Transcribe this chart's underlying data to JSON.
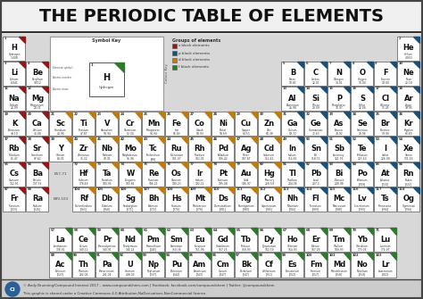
{
  "title": "THE PERIODIC TABLE OF ELEMENTS",
  "bg_color": "#d8d8d8",
  "title_bg": "#f2f2f2",
  "cell_bg": "#ffffff",
  "border_color": "#555555",
  "s_block_color": "#8B1A1A",
  "p_block_color": "#1a4f7a",
  "d_block_color": "#c07a10",
  "f_block_color": "#2d7a2d",
  "label_57_71": "E57-71",
  "label_89_103": "E89-103",
  "elements": [
    {
      "sym": "H",
      "name": "Hydrogen",
      "num": 1,
      "mass": "1.008",
      "row": 1,
      "col": 1,
      "block": "s"
    },
    {
      "sym": "He",
      "name": "Helium",
      "num": 2,
      "mass": "4.003",
      "row": 1,
      "col": 18,
      "block": "p"
    },
    {
      "sym": "Li",
      "name": "Lithium",
      "num": 3,
      "mass": "6.941",
      "row": 2,
      "col": 1,
      "block": "s"
    },
    {
      "sym": "Be",
      "name": "Beryllium",
      "num": 4,
      "mass": "9.012",
      "row": 2,
      "col": 2,
      "block": "s"
    },
    {
      "sym": "B",
      "name": "Boron",
      "num": 5,
      "mass": "10.81",
      "row": 2,
      "col": 13,
      "block": "p"
    },
    {
      "sym": "C",
      "name": "Carbon",
      "num": 6,
      "mass": "12.01",
      "row": 2,
      "col": 14,
      "block": "p"
    },
    {
      "sym": "N",
      "name": "Nitrogen",
      "num": 7,
      "mass": "14.01",
      "row": 2,
      "col": 15,
      "block": "p"
    },
    {
      "sym": "O",
      "name": "Oxygen",
      "num": 8,
      "mass": "16.00",
      "row": 2,
      "col": 16,
      "block": "p"
    },
    {
      "sym": "F",
      "name": "Fluorine",
      "num": 9,
      "mass": "19.00",
      "row": 2,
      "col": 17,
      "block": "p"
    },
    {
      "sym": "Ne",
      "name": "Neon",
      "num": 10,
      "mass": "20.18",
      "row": 2,
      "col": 18,
      "block": "p"
    },
    {
      "sym": "Na",
      "name": "Sodium",
      "num": 11,
      "mass": "22.99",
      "row": 3,
      "col": 1,
      "block": "s"
    },
    {
      "sym": "Mg",
      "name": "Magnesium",
      "num": 12,
      "mass": "24.31",
      "row": 3,
      "col": 2,
      "block": "s"
    },
    {
      "sym": "Al",
      "name": "Aluminium",
      "num": 13,
      "mass": "26.98",
      "row": 3,
      "col": 13,
      "block": "p"
    },
    {
      "sym": "Si",
      "name": "Silicon",
      "num": 14,
      "mass": "28.09",
      "row": 3,
      "col": 14,
      "block": "p"
    },
    {
      "sym": "P",
      "name": "Phosphorus",
      "num": 15,
      "mass": "30.97",
      "row": 3,
      "col": 15,
      "block": "p"
    },
    {
      "sym": "S",
      "name": "Sulfur",
      "num": 16,
      "mass": "32.06",
      "row": 3,
      "col": 16,
      "block": "p"
    },
    {
      "sym": "Cl",
      "name": "Chlorine",
      "num": 17,
      "mass": "35.45",
      "row": 3,
      "col": 17,
      "block": "p"
    },
    {
      "sym": "Ar",
      "name": "Argon",
      "num": 18,
      "mass": "39.95",
      "row": 3,
      "col": 18,
      "block": "p"
    },
    {
      "sym": "K",
      "name": "Potassium",
      "num": 19,
      "mass": "39.10",
      "row": 4,
      "col": 1,
      "block": "s"
    },
    {
      "sym": "Ca",
      "name": "Calcium",
      "num": 20,
      "mass": "40.08",
      "row": 4,
      "col": 2,
      "block": "s"
    },
    {
      "sym": "Sc",
      "name": "Scandium",
      "num": 21,
      "mass": "44.96",
      "row": 4,
      "col": 3,
      "block": "d"
    },
    {
      "sym": "Ti",
      "name": "Titanium",
      "num": 22,
      "mass": "47.87",
      "row": 4,
      "col": 4,
      "block": "d"
    },
    {
      "sym": "V",
      "name": "Vanadium",
      "num": 23,
      "mass": "50.94",
      "row": 4,
      "col": 5,
      "block": "d"
    },
    {
      "sym": "Cr",
      "name": "Chromium",
      "num": 24,
      "mass": "52.00",
      "row": 4,
      "col": 6,
      "block": "d"
    },
    {
      "sym": "Mn",
      "name": "Manganese",
      "num": 25,
      "mass": "54.94",
      "row": 4,
      "col": 7,
      "block": "d"
    },
    {
      "sym": "Fe",
      "name": "Iron",
      "num": 26,
      "mass": "55.85",
      "row": 4,
      "col": 8,
      "block": "d"
    },
    {
      "sym": "Co",
      "name": "Cobalt",
      "num": 27,
      "mass": "58.93",
      "row": 4,
      "col": 9,
      "block": "d"
    },
    {
      "sym": "Ni",
      "name": "Nickel",
      "num": 28,
      "mass": "58.69",
      "row": 4,
      "col": 10,
      "block": "d"
    },
    {
      "sym": "Cu",
      "name": "Copper",
      "num": 29,
      "mass": "63.55",
      "row": 4,
      "col": 11,
      "block": "d"
    },
    {
      "sym": "Zn",
      "name": "Zinc",
      "num": 30,
      "mass": "65.38",
      "row": 4,
      "col": 12,
      "block": "d"
    },
    {
      "sym": "Ga",
      "name": "Gallium",
      "num": 31,
      "mass": "69.72",
      "row": 4,
      "col": 13,
      "block": "p"
    },
    {
      "sym": "Ge",
      "name": "Germanium",
      "num": 32,
      "mass": "72.63",
      "row": 4,
      "col": 14,
      "block": "p"
    },
    {
      "sym": "As",
      "name": "Arsenic",
      "num": 33,
      "mass": "74.92",
      "row": 4,
      "col": 15,
      "block": "p"
    },
    {
      "sym": "Se",
      "name": "Selenium",
      "num": 34,
      "mass": "78.96",
      "row": 4,
      "col": 16,
      "block": "p"
    },
    {
      "sym": "Br",
      "name": "Bromine",
      "num": 35,
      "mass": "79.90",
      "row": 4,
      "col": 17,
      "block": "p"
    },
    {
      "sym": "Kr",
      "name": "Krypton",
      "num": 36,
      "mass": "83.80",
      "row": 4,
      "col": 18,
      "block": "p"
    },
    {
      "sym": "Rb",
      "name": "Rubidium",
      "num": 37,
      "mass": "85.47",
      "row": 5,
      "col": 1,
      "block": "s"
    },
    {
      "sym": "Sr",
      "name": "Strontium",
      "num": 38,
      "mass": "87.62",
      "row": 5,
      "col": 2,
      "block": "s"
    },
    {
      "sym": "Y",
      "name": "Yttrium",
      "num": 39,
      "mass": "88.91",
      "row": 5,
      "col": 3,
      "block": "d"
    },
    {
      "sym": "Zr",
      "name": "Zirconium",
      "num": 40,
      "mass": "91.22",
      "row": 5,
      "col": 4,
      "block": "d"
    },
    {
      "sym": "Nb",
      "name": "Niobium",
      "num": 41,
      "mass": "92.91",
      "row": 5,
      "col": 5,
      "block": "d"
    },
    {
      "sym": "Mo",
      "name": "Molybdenum",
      "num": 42,
      "mass": "95.96",
      "row": 5,
      "col": 6,
      "block": "d"
    },
    {
      "sym": "Tc",
      "name": "Technetium",
      "num": 43,
      "mass": "[98]",
      "row": 5,
      "col": 7,
      "block": "d"
    },
    {
      "sym": "Ru",
      "name": "Ruthenium",
      "num": 44,
      "mass": "101.07",
      "row": 5,
      "col": 8,
      "block": "d"
    },
    {
      "sym": "Rh",
      "name": "Rhodium",
      "num": 45,
      "mass": "102.91",
      "row": 5,
      "col": 9,
      "block": "d"
    },
    {
      "sym": "Pd",
      "name": "Palladium",
      "num": 46,
      "mass": "106.42",
      "row": 5,
      "col": 10,
      "block": "d"
    },
    {
      "sym": "Ag",
      "name": "Silver",
      "num": 47,
      "mass": "107.87",
      "row": 5,
      "col": 11,
      "block": "d"
    },
    {
      "sym": "Cd",
      "name": "Cadmium",
      "num": 48,
      "mass": "112.41",
      "row": 5,
      "col": 12,
      "block": "d"
    },
    {
      "sym": "In",
      "name": "Indium",
      "num": 49,
      "mass": "114.82",
      "row": 5,
      "col": 13,
      "block": "p"
    },
    {
      "sym": "Sn",
      "name": "Tin",
      "num": 50,
      "mass": "118.71",
      "row": 5,
      "col": 14,
      "block": "p"
    },
    {
      "sym": "Sb",
      "name": "Antimony",
      "num": 51,
      "mass": "121.76",
      "row": 5,
      "col": 15,
      "block": "p"
    },
    {
      "sym": "Te",
      "name": "Tellurium",
      "num": 52,
      "mass": "127.60",
      "row": 5,
      "col": 16,
      "block": "p"
    },
    {
      "sym": "I",
      "name": "Iodine",
      "num": 53,
      "mass": "126.90",
      "row": 5,
      "col": 17,
      "block": "p"
    },
    {
      "sym": "Xe",
      "name": "Xenon",
      "num": 54,
      "mass": "131.29",
      "row": 5,
      "col": 18,
      "block": "p"
    },
    {
      "sym": "Cs",
      "name": "Caesium",
      "num": 55,
      "mass": "132.91",
      "row": 6,
      "col": 1,
      "block": "s"
    },
    {
      "sym": "Ba",
      "name": "Barium",
      "num": 56,
      "mass": "137.33",
      "row": 6,
      "col": 2,
      "block": "s"
    },
    {
      "sym": "Hf",
      "name": "Hafnium",
      "num": 72,
      "mass": "178.49",
      "row": 6,
      "col": 4,
      "block": "d"
    },
    {
      "sym": "Ta",
      "name": "Tantalum",
      "num": 73,
      "mass": "180.95",
      "row": 6,
      "col": 5,
      "block": "d"
    },
    {
      "sym": "W",
      "name": "Tungsten",
      "num": 74,
      "mass": "183.84",
      "row": 6,
      "col": 6,
      "block": "d"
    },
    {
      "sym": "Re",
      "name": "Rhenium",
      "num": 75,
      "mass": "186.21",
      "row": 6,
      "col": 7,
      "block": "d"
    },
    {
      "sym": "Os",
      "name": "Osmium",
      "num": 76,
      "mass": "190.23",
      "row": 6,
      "col": 8,
      "block": "d"
    },
    {
      "sym": "Ir",
      "name": "Iridium",
      "num": 77,
      "mass": "192.22",
      "row": 6,
      "col": 9,
      "block": "d"
    },
    {
      "sym": "Pt",
      "name": "Platinum",
      "num": 78,
      "mass": "195.08",
      "row": 6,
      "col": 10,
      "block": "d"
    },
    {
      "sym": "Au",
      "name": "Gold",
      "num": 79,
      "mass": "196.97",
      "row": 6,
      "col": 11,
      "block": "d"
    },
    {
      "sym": "Hg",
      "name": "Mercury",
      "num": 80,
      "mass": "200.59",
      "row": 6,
      "col": 12,
      "block": "d"
    },
    {
      "sym": "Tl",
      "name": "Thallium",
      "num": 81,
      "mass": "204.38",
      "row": 6,
      "col": 13,
      "block": "p"
    },
    {
      "sym": "Pb",
      "name": "Lead",
      "num": 82,
      "mass": "207.2",
      "row": 6,
      "col": 14,
      "block": "p"
    },
    {
      "sym": "Bi",
      "name": "Bismuth",
      "num": 83,
      "mass": "208.98",
      "row": 6,
      "col": 15,
      "block": "p"
    },
    {
      "sym": "Po",
      "name": "Polonium",
      "num": 84,
      "mass": "[209]",
      "row": 6,
      "col": 16,
      "block": "p"
    },
    {
      "sym": "At",
      "name": "Astatine",
      "num": 85,
      "mass": "[210]",
      "row": 6,
      "col": 17,
      "block": "p"
    },
    {
      "sym": "Rn",
      "name": "Radon",
      "num": 86,
      "mass": "[222]",
      "row": 6,
      "col": 18,
      "block": "p"
    },
    {
      "sym": "Fr",
      "name": "Francium",
      "num": 87,
      "mass": "[223]",
      "row": 7,
      "col": 1,
      "block": "s"
    },
    {
      "sym": "Ra",
      "name": "Radium",
      "num": 88,
      "mass": "[226]",
      "row": 7,
      "col": 2,
      "block": "s"
    },
    {
      "sym": "Rf",
      "name": "Rutherfordium",
      "num": 104,
      "mass": "[265]",
      "row": 7,
      "col": 4,
      "block": "d"
    },
    {
      "sym": "Db",
      "name": "Dubnium",
      "num": 105,
      "mass": "[268]",
      "row": 7,
      "col": 5,
      "block": "d"
    },
    {
      "sym": "Sg",
      "name": "Seaborgium",
      "num": 106,
      "mass": "[271]",
      "row": 7,
      "col": 6,
      "block": "d"
    },
    {
      "sym": "Bh",
      "name": "Bohrium",
      "num": 107,
      "mass": "[272]",
      "row": 7,
      "col": 7,
      "block": "d"
    },
    {
      "sym": "Hs",
      "name": "Hassium",
      "num": 108,
      "mass": "[270]",
      "row": 7,
      "col": 8,
      "block": "d"
    },
    {
      "sym": "Mt",
      "name": "Meitnerium",
      "num": 109,
      "mass": "[276]",
      "row": 7,
      "col": 9,
      "block": "d"
    },
    {
      "sym": "Ds",
      "name": "Darmstadtium",
      "num": 110,
      "mass": "[281]",
      "row": 7,
      "col": 10,
      "block": "d"
    },
    {
      "sym": "Rg",
      "name": "Roentgenium",
      "num": 111,
      "mass": "[280]",
      "row": 7,
      "col": 11,
      "block": "d"
    },
    {
      "sym": "Cn",
      "name": "Copernicium",
      "num": 112,
      "mass": "[285]",
      "row": 7,
      "col": 12,
      "block": "d"
    },
    {
      "sym": "Nh",
      "name": "Nihonium",
      "num": 113,
      "mass": "[284]",
      "row": 7,
      "col": 13,
      "block": "p"
    },
    {
      "sym": "Fl",
      "name": "Flerovium",
      "num": 114,
      "mass": "[289]",
      "row": 7,
      "col": 14,
      "block": "p"
    },
    {
      "sym": "Mc",
      "name": "Moscovium",
      "num": 115,
      "mass": "[288]",
      "row": 7,
      "col": 15,
      "block": "p"
    },
    {
      "sym": "Lv",
      "name": "Livermorium",
      "num": 116,
      "mass": "[293]",
      "row": 7,
      "col": 16,
      "block": "p"
    },
    {
      "sym": "Ts",
      "name": "Tennessine",
      "num": 117,
      "mass": "[294]",
      "row": 7,
      "col": 17,
      "block": "p"
    },
    {
      "sym": "Og",
      "name": "Oganesson",
      "num": 118,
      "mass": "[294]",
      "row": 7,
      "col": 18,
      "block": "p"
    },
    {
      "sym": "La",
      "name": "Lanthanum",
      "num": 57,
      "mass": "138.91",
      "row": 9,
      "col": 3,
      "block": "f"
    },
    {
      "sym": "Ce",
      "name": "Cerium",
      "num": 58,
      "mass": "140.12",
      "row": 9,
      "col": 4,
      "block": "f"
    },
    {
      "sym": "Pr",
      "name": "Praseodymium",
      "num": 59,
      "mass": "140.91",
      "row": 9,
      "col": 5,
      "block": "f"
    },
    {
      "sym": "Nd",
      "name": "Neodymium",
      "num": 60,
      "mass": "144.24",
      "row": 9,
      "col": 6,
      "block": "f"
    },
    {
      "sym": "Pm",
      "name": "Promethium",
      "num": 61,
      "mass": "[145]",
      "row": 9,
      "col": 7,
      "block": "f"
    },
    {
      "sym": "Sm",
      "name": "Samarium",
      "num": 62,
      "mass": "150.36",
      "row": 9,
      "col": 8,
      "block": "f"
    },
    {
      "sym": "Eu",
      "name": "Europium",
      "num": 63,
      "mass": "151.96",
      "row": 9,
      "col": 9,
      "block": "f"
    },
    {
      "sym": "Gd",
      "name": "Gadolinium",
      "num": 64,
      "mass": "157.25",
      "row": 9,
      "col": 10,
      "block": "f"
    },
    {
      "sym": "Tb",
      "name": "Terbium",
      "num": 65,
      "mass": "158.93",
      "row": 9,
      "col": 11,
      "block": "f"
    },
    {
      "sym": "Dy",
      "name": "Dysprosium",
      "num": 66,
      "mass": "162.50",
      "row": 9,
      "col": 12,
      "block": "f"
    },
    {
      "sym": "Ho",
      "name": "Holmium",
      "num": 67,
      "mass": "164.93",
      "row": 9,
      "col": 13,
      "block": "f"
    },
    {
      "sym": "Er",
      "name": "Erbium",
      "num": 68,
      "mass": "167.26",
      "row": 9,
      "col": 14,
      "block": "f"
    },
    {
      "sym": "Tm",
      "name": "Thulium",
      "num": 69,
      "mass": "168.93",
      "row": 9,
      "col": 15,
      "block": "f"
    },
    {
      "sym": "Yb",
      "name": "Ytterbium",
      "num": 70,
      "mass": "173.05",
      "row": 9,
      "col": 16,
      "block": "f"
    },
    {
      "sym": "Lu",
      "name": "Lutetium",
      "num": 71,
      "mass": "174.97",
      "row": 9,
      "col": 17,
      "block": "f"
    },
    {
      "sym": "Ac",
      "name": "Actinium",
      "num": 89,
      "mass": "[227]",
      "row": 10,
      "col": 3,
      "block": "f"
    },
    {
      "sym": "Th",
      "name": "Thorium",
      "num": 90,
      "mass": "232.04",
      "row": 10,
      "col": 4,
      "block": "f"
    },
    {
      "sym": "Pa",
      "name": "Protactinium",
      "num": 91,
      "mass": "231.04",
      "row": 10,
      "col": 5,
      "block": "f"
    },
    {
      "sym": "U",
      "name": "Uranium",
      "num": 92,
      "mass": "238.03",
      "row": 10,
      "col": 6,
      "block": "f"
    },
    {
      "sym": "Np",
      "name": "Neptunium",
      "num": 93,
      "mass": "[237]",
      "row": 10,
      "col": 7,
      "block": "f"
    },
    {
      "sym": "Pu",
      "name": "Plutonium",
      "num": 94,
      "mass": "[244]",
      "row": 10,
      "col": 8,
      "block": "f"
    },
    {
      "sym": "Am",
      "name": "Americium",
      "num": 95,
      "mass": "[243]",
      "row": 10,
      "col": 9,
      "block": "f"
    },
    {
      "sym": "Cm",
      "name": "Curium",
      "num": 96,
      "mass": "[247]",
      "row": 10,
      "col": 10,
      "block": "f"
    },
    {
      "sym": "Bk",
      "name": "Berkelium",
      "num": 97,
      "mass": "[247]",
      "row": 10,
      "col": 11,
      "block": "f"
    },
    {
      "sym": "Cf",
      "name": "Californium",
      "num": 98,
      "mass": "[251]",
      "row": 10,
      "col": 12,
      "block": "f"
    },
    {
      "sym": "Es",
      "name": "Einsteinium",
      "num": 99,
      "mass": "[252]",
      "row": 10,
      "col": 13,
      "block": "f"
    },
    {
      "sym": "Fm",
      "name": "Fermium",
      "num": 100,
      "mass": "[257]",
      "row": 10,
      "col": 14,
      "block": "f"
    },
    {
      "sym": "Md",
      "name": "Mendelevium",
      "num": 101,
      "mass": "[258]",
      "row": 10,
      "col": 15,
      "block": "f"
    },
    {
      "sym": "No",
      "name": "Nobelium",
      "num": 102,
      "mass": "[259]",
      "row": 10,
      "col": 16,
      "block": "f"
    },
    {
      "sym": "Lr",
      "name": "Lawrencium",
      "num": 103,
      "mass": "[262]",
      "row": 10,
      "col": 17,
      "block": "f"
    }
  ],
  "footer": "© Andy Brunning/Compound Interest 2017 – www.compoundchem.com | Facebook: facebook.com/compoundchem | Twitter: @compoundchem",
  "footer2": "This graphic is shared under a Creative Commons 4.0 Attribution-NoDerivatives-NonCommercial licence."
}
